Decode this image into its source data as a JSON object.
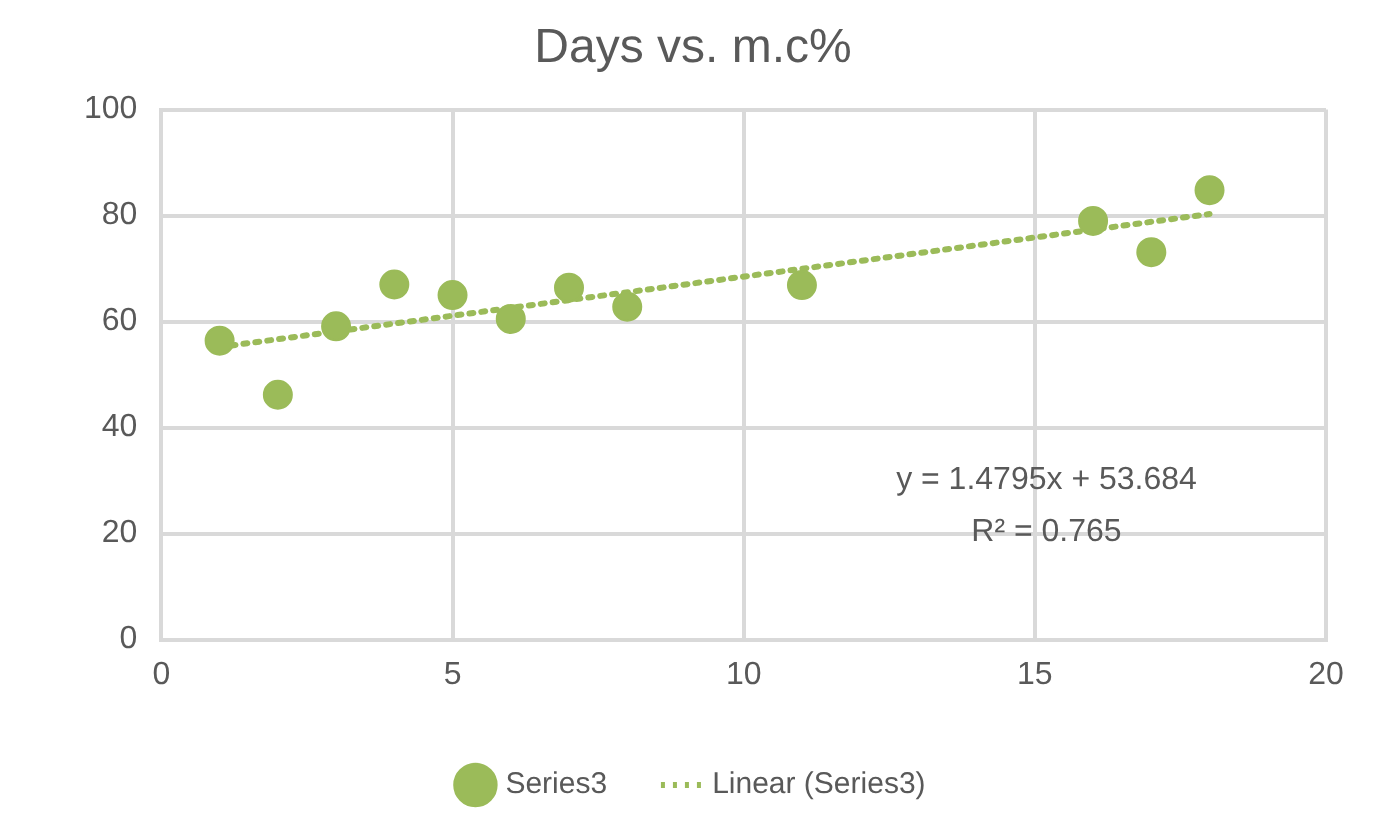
{
  "chart_data": {
    "type": "scatter",
    "title": "Days vs. m.c%",
    "series": [
      {
        "name": "Series3",
        "color": "#9bbb59",
        "x": [
          1,
          2,
          3,
          4,
          5,
          6,
          7,
          8,
          11,
          16,
          17,
          18
        ],
        "values": [
          56.4,
          46.2,
          59.1,
          67,
          65,
          60.5,
          66.4,
          62.8,
          66.9,
          79,
          73.1,
          84.8
        ],
        "marker": "circle"
      },
      {
        "name": "Linear (Series3)",
        "type": "line",
        "color": "#9bbb59",
        "x": [
          1,
          18
        ],
        "values": [
          55.2,
          80.3
        ],
        "line_style": "dotted",
        "marker": "none"
      }
    ],
    "xlim": [
      0,
      20
    ],
    "xticks": [
      0,
      5,
      10,
      15,
      20
    ],
    "ylim": [
      0,
      100
    ],
    "yticks": [
      0,
      20,
      40,
      60,
      80,
      100
    ],
    "grid": true,
    "legend": "bottom",
    "annotations": [
      "y = 1.4795x + 53.684",
      "R² = 0.765"
    ]
  }
}
